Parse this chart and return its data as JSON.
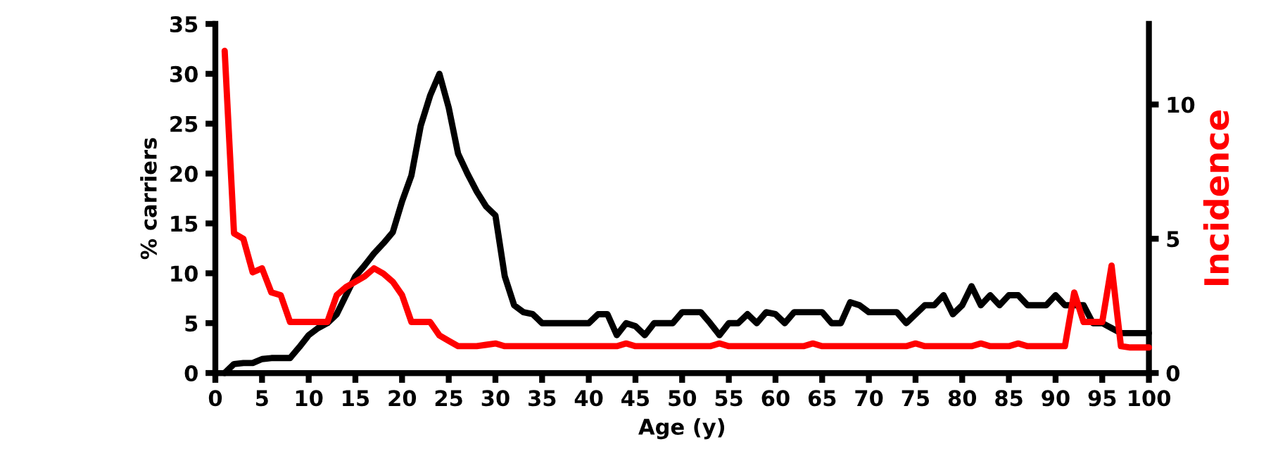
{
  "chart_data": {
    "type": "line",
    "xlabel": "Age (y)",
    "ylabel": "% carriers",
    "y2label": "Incidence",
    "xlim": [
      0,
      100
    ],
    "xticks": [
      0,
      5,
      10,
      15,
      20,
      25,
      30,
      35,
      40,
      45,
      50,
      55,
      60,
      65,
      70,
      75,
      80,
      85,
      90,
      95,
      100
    ],
    "ylim": [
      0,
      35
    ],
    "yticks": [
      0,
      5,
      10,
      15,
      20,
      25,
      30,
      35
    ],
    "y2lim": [
      0,
      13
    ],
    "y2ticks": [
      0,
      5,
      10
    ],
    "grid": false,
    "marker": "none",
    "line_style": "solid",
    "series": [
      {
        "color": "#000000",
        "x": [
          1,
          2,
          3,
          4,
          5,
          6,
          7,
          8,
          9,
          10,
          11,
          12,
          13,
          14,
          15,
          16,
          17,
          18,
          19,
          20,
          21,
          22,
          23,
          24,
          25,
          26,
          27,
          28,
          29,
          30,
          31,
          32,
          33,
          34,
          35,
          36,
          37,
          38,
          39,
          40,
          41,
          42,
          43,
          44,
          45,
          46,
          47,
          48,
          49,
          50,
          51,
          52,
          53,
          54,
          55,
          56,
          57,
          58,
          59,
          60,
          61,
          62,
          63,
          64,
          65,
          66,
          67,
          68,
          69,
          70,
          71,
          72,
          73,
          74,
          75,
          76,
          77,
          78,
          79,
          80,
          81,
          82,
          83,
          84,
          85,
          86,
          87,
          88,
          89,
          90,
          91,
          92,
          93,
          94,
          95,
          96,
          97,
          98,
          99,
          100
        ],
        "values": [
          0,
          0.9,
          1,
          1,
          1.4,
          1.5,
          1.5,
          1.5,
          2.6,
          3.8,
          4.5,
          5,
          5.9,
          7.8,
          9.7,
          10.8,
          12,
          13,
          14.1,
          17.2,
          19.8,
          24.8,
          27.8,
          30,
          26.6,
          22,
          20,
          18.2,
          16.7,
          15.8,
          9.7,
          6.8,
          6.1,
          5.9,
          5,
          5,
          5,
          5,
          5,
          5,
          5.9,
          5.9,
          3.8,
          5,
          4.7,
          3.8,
          5,
          5,
          5,
          6.1,
          6.1,
          6.1,
          5,
          3.8,
          5,
          5,
          5.9,
          5,
          6.1,
          5.9,
          5,
          6.1,
          6.1,
          6.1,
          6.1,
          5,
          5,
          7.1,
          6.8,
          6.1,
          6.1,
          6.1,
          6.1,
          5,
          5.9,
          6.8,
          6.8,
          7.8,
          5.9,
          6.8,
          8.7,
          6.8,
          7.8,
          6.8,
          7.8,
          7.8,
          6.8,
          6.8,
          6.8,
          7.8,
          6.8,
          6.8,
          6.8,
          5,
          5,
          4.5,
          4,
          4,
          4,
          4
        ]
      },
      {
        "color": "#ff0000",
        "axis": "y2",
        "x": [
          1,
          2,
          3,
          4,
          5,
          6,
          7,
          8,
          9,
          10,
          11,
          12,
          13,
          14,
          15,
          16,
          17,
          18,
          19,
          20,
          21,
          22,
          23,
          24,
          25,
          26,
          27,
          28,
          29,
          30,
          31,
          43,
          44,
          45,
          53,
          54,
          55,
          63,
          64,
          65,
          74,
          75,
          76,
          81,
          82,
          83,
          85,
          86,
          87,
          91,
          92,
          93,
          94,
          95,
          96,
          97,
          98,
          99,
          100
        ],
        "values": [
          12,
          5.2,
          5,
          3.75,
          3.9,
          3,
          2.9,
          1.9,
          1.9,
          1.9,
          1.9,
          1.9,
          2.9,
          3.2,
          3.4,
          3.6,
          3.9,
          3.7,
          3.4,
          2.9,
          1.9,
          1.9,
          1.9,
          1.4,
          1.2,
          1,
          1,
          1,
          1.05,
          1.1,
          1,
          1,
          1.1,
          1,
          1,
          1.1,
          1,
          1,
          1.1,
          1,
          1,
          1.1,
          1,
          1,
          1.1,
          1,
          1,
          1.1,
          1,
          1,
          3,
          1.9,
          1.9,
          1.9,
          4,
          1,
          0.95,
          0.95,
          0.95
        ]
      }
    ]
  }
}
